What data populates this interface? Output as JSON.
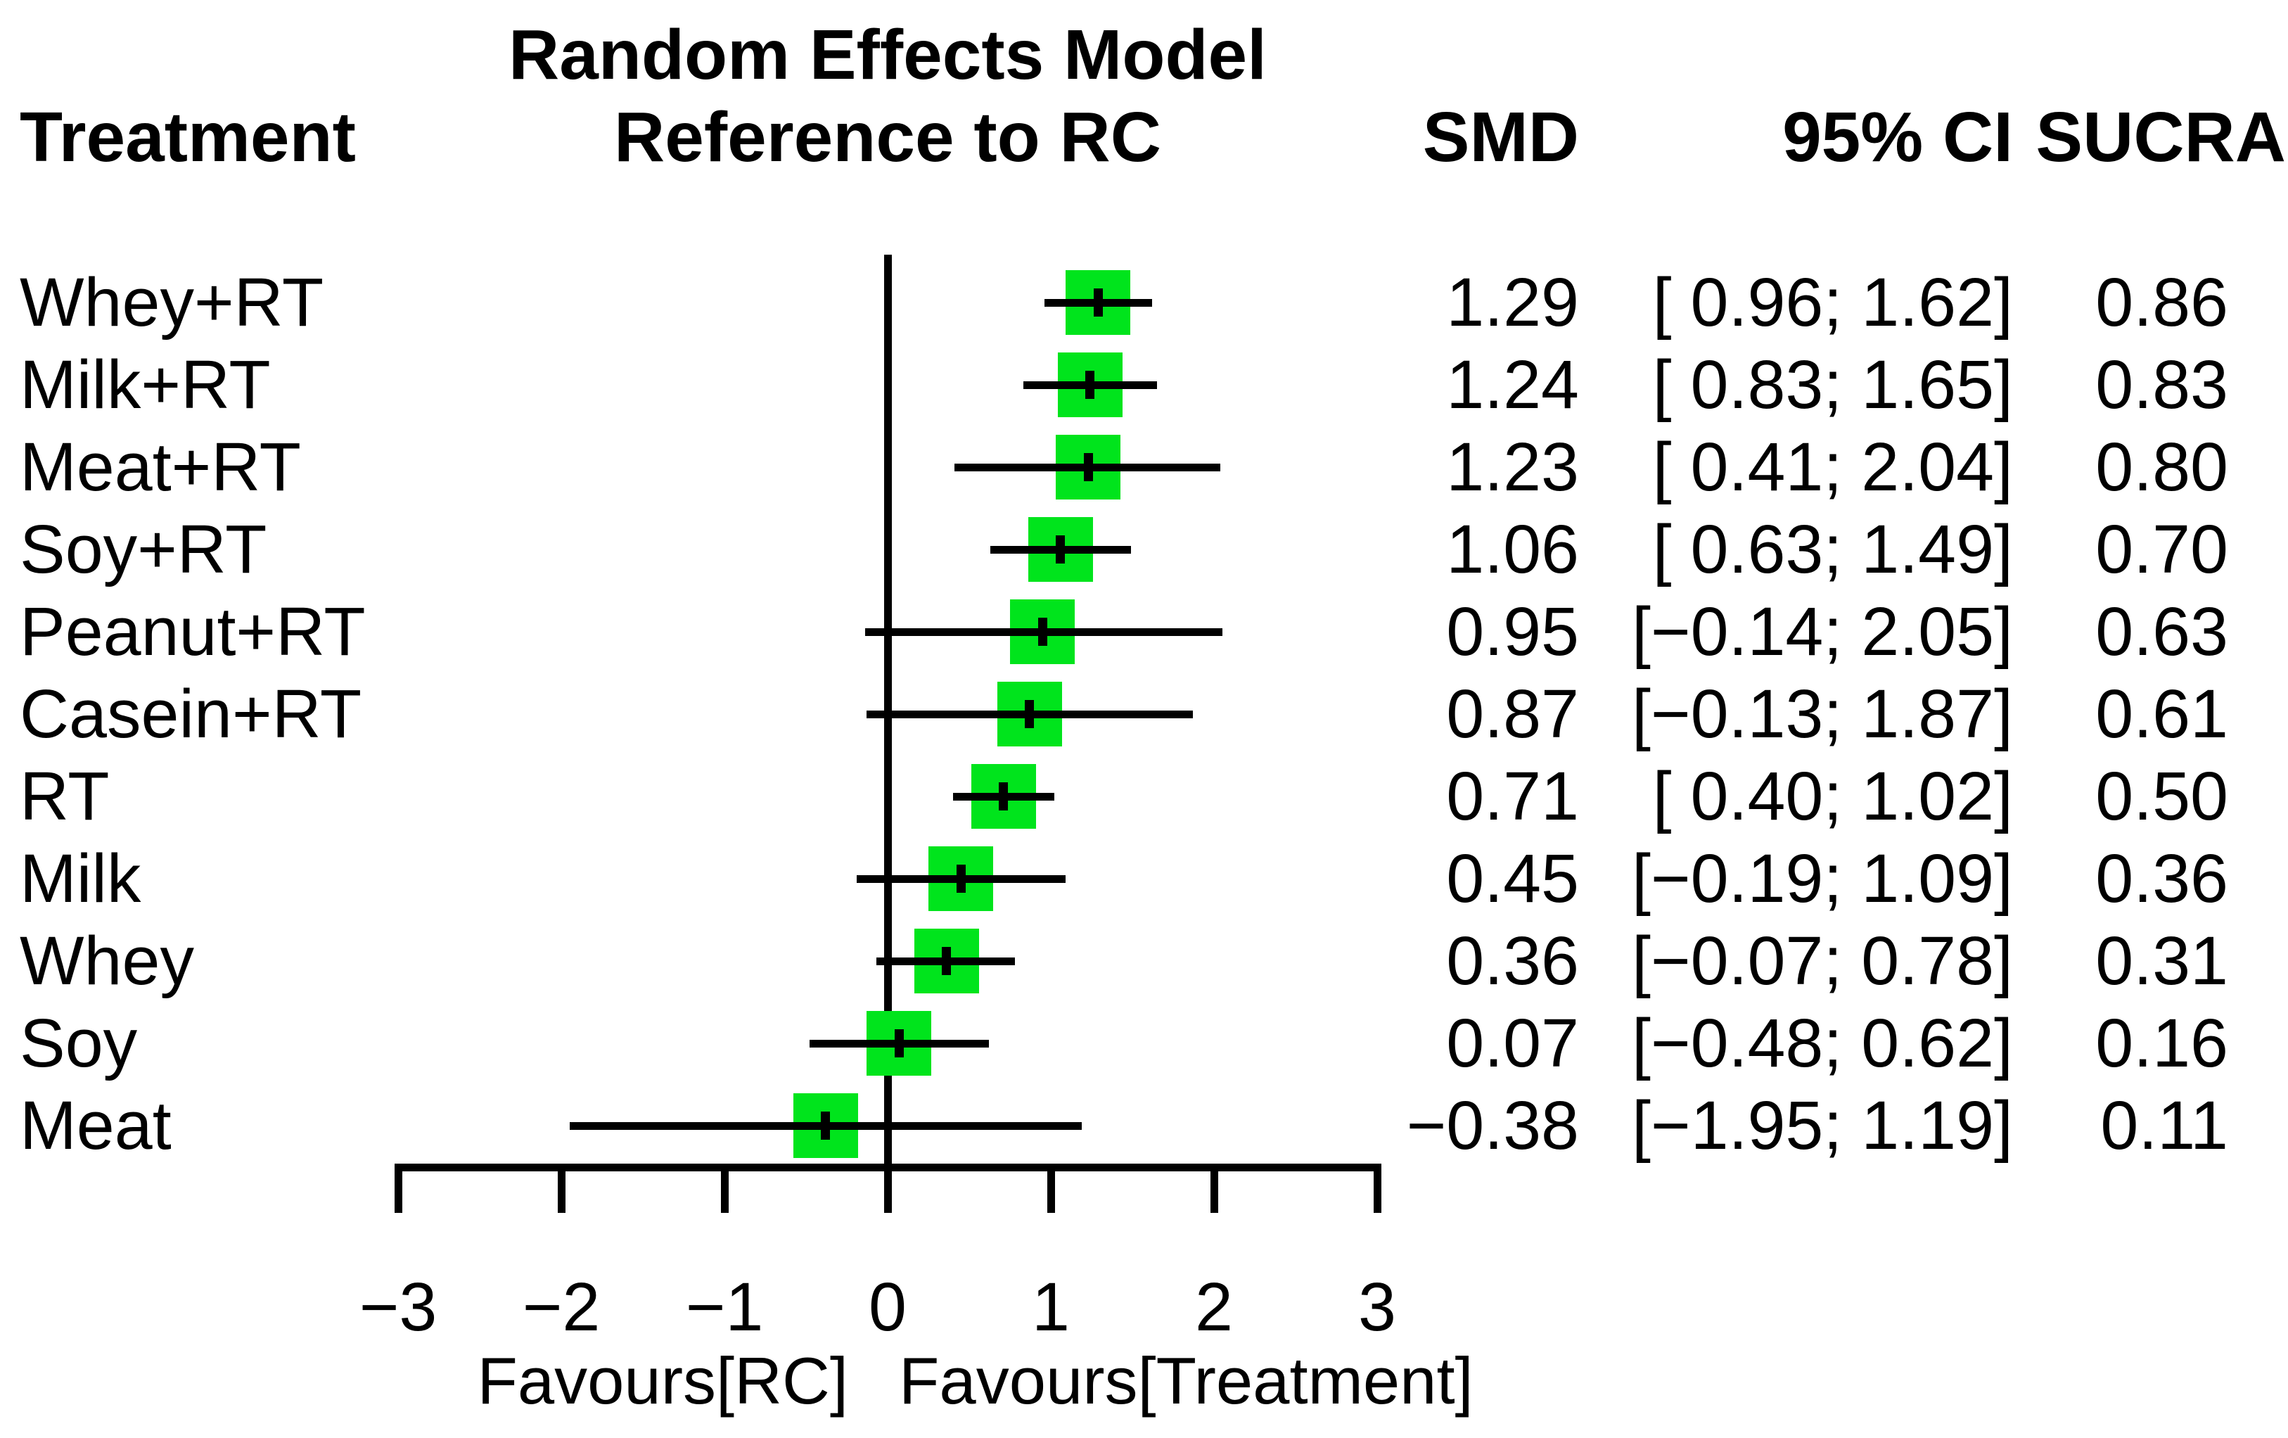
{
  "chart_data": {
    "type": "scatter",
    "variant": "forest-plot",
    "title_lines": [
      "Random Effects Model",
      "Reference to RC"
    ],
    "column_headers": {
      "treatment": "Treatment",
      "smd": "SMD",
      "ci": "95% CI",
      "sucra": "SUCRA"
    },
    "rows": [
      {
        "treatment": "Whey+RT",
        "smd": 1.29,
        "lower": 0.96,
        "upper": 1.62,
        "smd_label": "1.29",
        "ci_label": "[ 0.96; 1.62]",
        "sucra_label": "0.86"
      },
      {
        "treatment": "Milk+RT",
        "smd": 1.24,
        "lower": 0.83,
        "upper": 1.65,
        "smd_label": "1.24",
        "ci_label": "[ 0.83; 1.65]",
        "sucra_label": "0.83"
      },
      {
        "treatment": "Meat+RT",
        "smd": 1.23,
        "lower": 0.41,
        "upper": 2.04,
        "smd_label": "1.23",
        "ci_label": "[ 0.41; 2.04]",
        "sucra_label": "0.80"
      },
      {
        "treatment": "Soy+RT",
        "smd": 1.06,
        "lower": 0.63,
        "upper": 1.49,
        "smd_label": "1.06",
        "ci_label": "[ 0.63; 1.49]",
        "sucra_label": "0.70"
      },
      {
        "treatment": "Peanut+RT",
        "smd": 0.95,
        "lower": -0.14,
        "upper": 2.05,
        "smd_label": "0.95",
        "ci_label": "[−0.14; 2.05]",
        "sucra_label": "0.63"
      },
      {
        "treatment": "Casein+RT",
        "smd": 0.87,
        "lower": -0.13,
        "upper": 1.87,
        "smd_label": "0.87",
        "ci_label": "[−0.13; 1.87]",
        "sucra_label": "0.61"
      },
      {
        "treatment": "RT",
        "smd": 0.71,
        "lower": 0.4,
        "upper": 1.02,
        "smd_label": "0.71",
        "ci_label": "[ 0.40; 1.02]",
        "sucra_label": "0.50"
      },
      {
        "treatment": "Milk",
        "smd": 0.45,
        "lower": -0.19,
        "upper": 1.09,
        "smd_label": "0.45",
        "ci_label": "[−0.19; 1.09]",
        "sucra_label": "0.36"
      },
      {
        "treatment": "Whey",
        "smd": 0.36,
        "lower": -0.07,
        "upper": 0.78,
        "smd_label": "0.36",
        "ci_label": "[−0.07; 0.78]",
        "sucra_label": "0.31"
      },
      {
        "treatment": "Soy",
        "smd": 0.07,
        "lower": -0.48,
        "upper": 0.62,
        "smd_label": "0.07",
        "ci_label": "[−0.48; 0.62]",
        "sucra_label": "0.16"
      },
      {
        "treatment": "Meat",
        "smd": -0.38,
        "lower": -1.95,
        "upper": 1.19,
        "smd_label": "−0.38",
        "ci_label": "[−1.95; 1.19]",
        "sucra_label": "0.11"
      }
    ],
    "x_axis": {
      "min": -3,
      "max": 3,
      "ticks": [
        -3,
        -2,
        -1,
        0,
        1,
        2,
        3
      ],
      "tick_labels": [
        "−3",
        "−2",
        "−1",
        "0",
        "1",
        "2",
        "3"
      ],
      "reference_line": 0,
      "left_footer": "Favours[RC]",
      "right_footer": "Favours[Treatment]"
    },
    "style": {
      "marker_color": "#00e41c",
      "line_color": "#000000"
    }
  }
}
